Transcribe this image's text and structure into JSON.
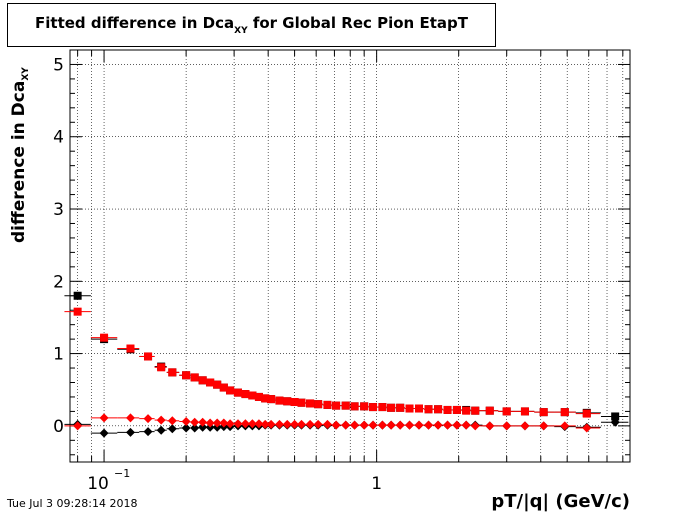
{
  "title": {
    "main": "Fitted difference in Dca",
    "sub": "XY",
    "rest": " for Global Rec Pion EtapT"
  },
  "axes": {
    "xlabel": "pT/|q| (GeV/c)",
    "ylabel_main": "difference in Dca",
    "ylabel_sub": "XY",
    "xticks": [
      {
        "value": 0.1,
        "label": "10",
        "sup": "−1"
      },
      {
        "value": 1,
        "label": "1"
      }
    ],
    "yticks": [
      "0",
      "1",
      "2",
      "3",
      "4",
      "5"
    ]
  },
  "footer": "Tue Jul  3 09:28:14 2018",
  "chart_data": {
    "type": "scatter",
    "xscale": "log",
    "xlim": [
      0.075,
      8.5
    ],
    "ylim": [
      -0.5,
      5.2
    ],
    "grid": true,
    "series": [
      {
        "marker": "square",
        "color": "#000000",
        "x": [
          0.08,
          0.1,
          0.125,
          0.145,
          0.162,
          0.178,
          0.2,
          0.215,
          0.23,
          0.245,
          0.26,
          0.275,
          0.29,
          0.31,
          0.33,
          0.35,
          0.37,
          0.39,
          0.41,
          0.44,
          0.47,
          0.5,
          0.53,
          0.57,
          0.61,
          0.66,
          0.71,
          0.77,
          0.83,
          0.9,
          0.97,
          1.05,
          1.13,
          1.22,
          1.32,
          1.43,
          1.55,
          1.68,
          1.82,
          1.97,
          2.13,
          2.3,
          2.6,
          3.0,
          3.5,
          4.1,
          4.9,
          5.9,
          7.5
        ],
        "y": [
          1.8,
          1.2,
          1.06,
          0.96,
          0.82,
          0.74,
          0.7,
          0.67,
          0.63,
          0.6,
          0.57,
          0.53,
          0.49,
          0.46,
          0.44,
          0.42,
          0.4,
          0.38,
          0.37,
          0.35,
          0.34,
          0.33,
          0.32,
          0.31,
          0.3,
          0.29,
          0.28,
          0.28,
          0.27,
          0.27,
          0.26,
          0.26,
          0.25,
          0.25,
          0.24,
          0.24,
          0.23,
          0.23,
          0.22,
          0.22,
          0.22,
          0.21,
          0.21,
          0.2,
          0.2,
          0.19,
          0.19,
          0.18,
          0.13
        ]
      },
      {
        "marker": "square",
        "color": "#ff0000",
        "x": [
          0.08,
          0.1,
          0.125,
          0.145,
          0.162,
          0.178,
          0.2,
          0.215,
          0.23,
          0.245,
          0.26,
          0.275,
          0.29,
          0.31,
          0.33,
          0.35,
          0.37,
          0.39,
          0.41,
          0.44,
          0.47,
          0.5,
          0.53,
          0.57,
          0.61,
          0.66,
          0.71,
          0.77,
          0.83,
          0.9,
          0.97,
          1.05,
          1.13,
          1.22,
          1.32,
          1.43,
          1.55,
          1.68,
          1.82,
          1.97,
          2.13,
          2.3,
          2.6,
          3.0,
          3.5,
          4.1,
          4.9,
          5.9
        ],
        "y": [
          1.58,
          1.22,
          1.07,
          0.96,
          0.81,
          0.74,
          0.7,
          0.67,
          0.63,
          0.6,
          0.57,
          0.53,
          0.49,
          0.46,
          0.44,
          0.42,
          0.4,
          0.38,
          0.37,
          0.35,
          0.34,
          0.33,
          0.32,
          0.31,
          0.3,
          0.29,
          0.28,
          0.28,
          0.27,
          0.27,
          0.26,
          0.26,
          0.25,
          0.25,
          0.24,
          0.24,
          0.23,
          0.23,
          0.22,
          0.22,
          0.21,
          0.21,
          0.21,
          0.2,
          0.2,
          0.19,
          0.19,
          0.17
        ]
      },
      {
        "marker": "diamond",
        "color": "#000000",
        "x": [
          0.08,
          0.1,
          0.125,
          0.145,
          0.162,
          0.178,
          0.2,
          0.215,
          0.23,
          0.245,
          0.26,
          0.275,
          0.29,
          0.31,
          0.33,
          0.35,
          0.37,
          0.39,
          0.41,
          0.44,
          0.47,
          0.5,
          0.53,
          0.57,
          0.61,
          0.66,
          0.71,
          0.77,
          0.83,
          0.9,
          0.97,
          1.05,
          1.13,
          1.22,
          1.32,
          1.43,
          1.55,
          1.68,
          1.82,
          1.97,
          2.13,
          2.3,
          2.6,
          3.0,
          3.5,
          4.1,
          4.9,
          5.9,
          7.5
        ],
        "y": [
          0.02,
          -0.1,
          -0.09,
          -0.08,
          -0.06,
          -0.04,
          -0.03,
          -0.03,
          -0.02,
          -0.02,
          -0.02,
          -0.01,
          -0.01,
          0.0,
          0.0,
          0.0,
          0.0,
          0.01,
          0.01,
          0.01,
          0.01,
          0.01,
          0.01,
          0.01,
          0.01,
          0.01,
          0.01,
          0.01,
          0.01,
          0.01,
          0.01,
          0.01,
          0.01,
          0.01,
          0.01,
          0.01,
          0.01,
          0.01,
          0.01,
          0.01,
          0.01,
          0.01,
          0.0,
          0.0,
          0.0,
          0.0,
          -0.01,
          -0.02,
          0.05
        ]
      },
      {
        "marker": "diamond",
        "color": "#ff0000",
        "x": [
          0.08,
          0.1,
          0.125,
          0.145,
          0.162,
          0.178,
          0.2,
          0.215,
          0.23,
          0.245,
          0.26,
          0.275,
          0.29,
          0.31,
          0.33,
          0.35,
          0.37,
          0.39,
          0.41,
          0.44,
          0.47,
          0.5,
          0.53,
          0.57,
          0.61,
          0.66,
          0.71,
          0.77,
          0.83,
          0.9,
          0.97,
          1.05,
          1.13,
          1.22,
          1.32,
          1.43,
          1.55,
          1.68,
          1.82,
          1.97,
          2.13,
          2.3,
          2.6,
          3.0,
          3.5,
          4.1,
          4.9,
          5.9
        ],
        "y": [
          0.0,
          0.11,
          0.11,
          0.1,
          0.08,
          0.07,
          0.06,
          0.05,
          0.05,
          0.04,
          0.04,
          0.04,
          0.03,
          0.03,
          0.03,
          0.03,
          0.03,
          0.02,
          0.02,
          0.02,
          0.02,
          0.02,
          0.02,
          0.02,
          0.02,
          0.02,
          0.01,
          0.01,
          0.01,
          0.01,
          0.01,
          0.01,
          0.01,
          0.01,
          0.01,
          0.01,
          0.01,
          0.01,
          0.01,
          0.01,
          0.01,
          0.0,
          0.0,
          0.0,
          0.0,
          0.0,
          0.0,
          -0.03
        ]
      }
    ]
  }
}
